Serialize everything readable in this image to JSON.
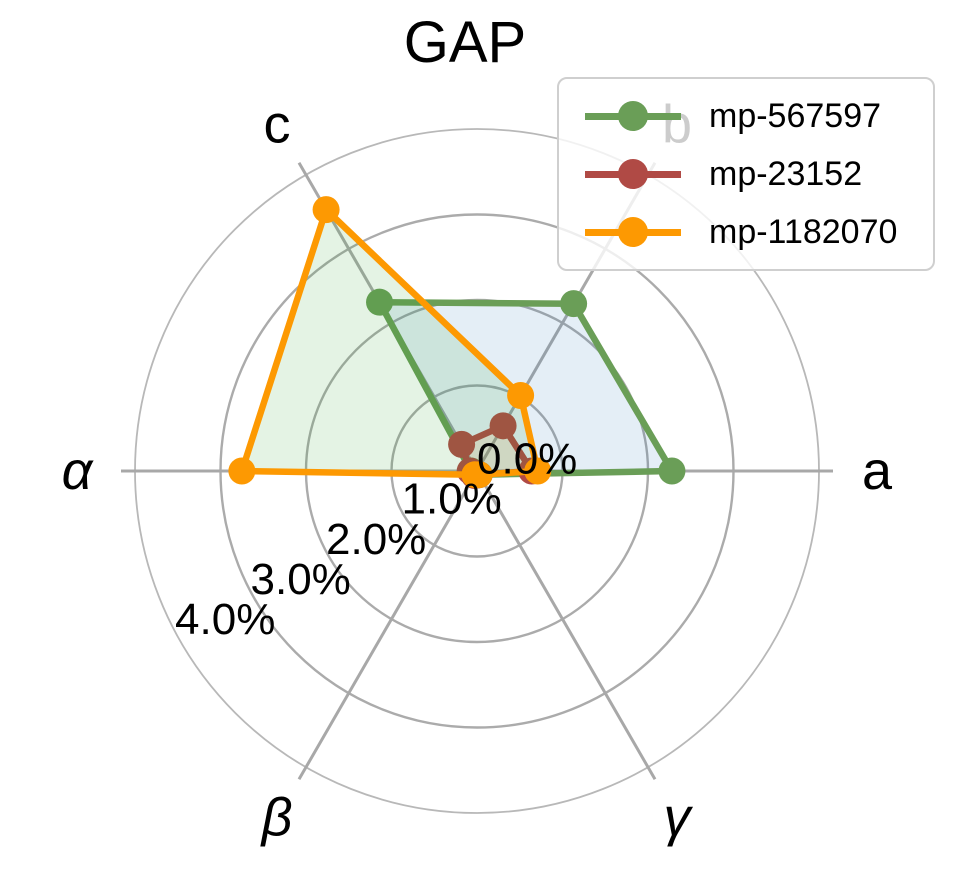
{
  "title": "GAP",
  "legend": {
    "position": "upper right",
    "items": [
      {
        "label": "mp-567597",
        "color": "#6a9e57"
      },
      {
        "label": "mp-23152",
        "color": "#b04a45"
      },
      {
        "label": "mp-1182070",
        "color": "#fd9902"
      }
    ]
  },
  "chart_data": {
    "type": "radar",
    "title": "GAP",
    "categories": [
      "a",
      "b",
      "c",
      "α",
      "β",
      "γ"
    ],
    "category_keys": [
      "a",
      "b",
      "c",
      "alpha",
      "beta",
      "gamma"
    ],
    "angles_deg": [
      0,
      60,
      120,
      180,
      240,
      300
    ],
    "r_tick_labels": [
      "0.0%",
      "1.0%",
      "2.0%",
      "3.0%",
      "4.0%"
    ],
    "r_min": 0,
    "r_max": 4.0,
    "grid": true,
    "series": [
      {
        "name": "mp-567597",
        "color": "#6a9e57",
        "fill": "rgba(31,119,180,0.12)",
        "values": [
          2.28,
          2.26,
          2.28,
          0.07,
          0.05,
          0.05
        ]
      },
      {
        "name": "mp-23152",
        "color": "#b04a45",
        "fill": "rgba(255,127,14,0.13)",
        "values": [
          0.64,
          0.61,
          0.36,
          0.08,
          0.06,
          0.05
        ]
      },
      {
        "name": "mp-1182070",
        "color": "#fd9902",
        "fill": "rgba(44,160,44,0.13)",
        "values": [
          0.71,
          1.02,
          3.53,
          2.75,
          0.05,
          0.05
        ]
      }
    ],
    "grid_color": "#ababab",
    "spoke_color": "#a8a8a8"
  }
}
